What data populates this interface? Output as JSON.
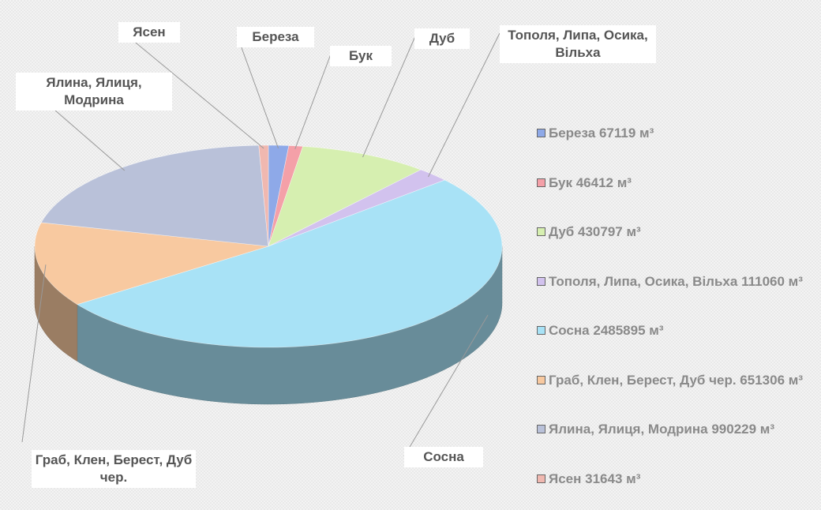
{
  "chart_data": {
    "type": "pie",
    "categories": [
      "Береза",
      "Бук",
      "Дуб",
      "Тополя, Липа, Осика, Вільха",
      "Сосна",
      "Граб, Клен, Берест, Дуб чер.",
      "Ялина, Ялиця, Модрина",
      "Ясен"
    ],
    "values": [
      67119,
      46412,
      430797,
      111060,
      2485895,
      651306,
      990229,
      31643
    ],
    "value_labels": [
      "67119 м³",
      "46412 м³",
      "430797 м³",
      "111060 м³",
      "2485895 м³",
      "651306 м³",
      "990229 м³",
      "31643 м³"
    ],
    "colors": [
      "#8ea9e8",
      "#f4a0a8",
      "#d6efb0",
      "#d2c2ee",
      "#a8e2f6",
      "#f8c9a0",
      "#b9c1d9",
      "#f0b8b0"
    ],
    "legend": "right"
  }
}
